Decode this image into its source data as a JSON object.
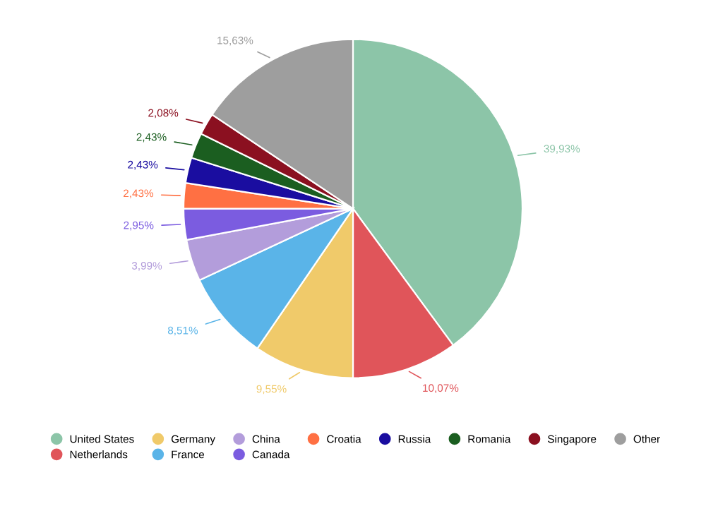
{
  "chart_data": {
    "type": "pie",
    "categories": [
      "United States",
      "Netherlands",
      "Germany",
      "France",
      "China",
      "Canada",
      "Croatia",
      "Russia",
      "Romania",
      "Singapore",
      "Other"
    ],
    "values": [
      39.93,
      10.07,
      9.55,
      8.51,
      3.99,
      2.95,
      2.43,
      2.43,
      2.43,
      2.08,
      15.63
    ],
    "value_labels": [
      "39,93%",
      "10,07%",
      "9,55%",
      "8,51%",
      "3,99%",
      "2,95%",
      "2,43%",
      "2,43%",
      "2,43%",
      "2,08%",
      "15,63%"
    ],
    "colors": [
      "#8cc5a8",
      "#e0555a",
      "#f0ca6a",
      "#5ab4e8",
      "#b39ddb",
      "#7b5ce0",
      "#ff7043",
      "#1a0da0",
      "#1b5e20",
      "#8b1020",
      "#9e9e9e"
    ],
    "legend": "bottom"
  }
}
